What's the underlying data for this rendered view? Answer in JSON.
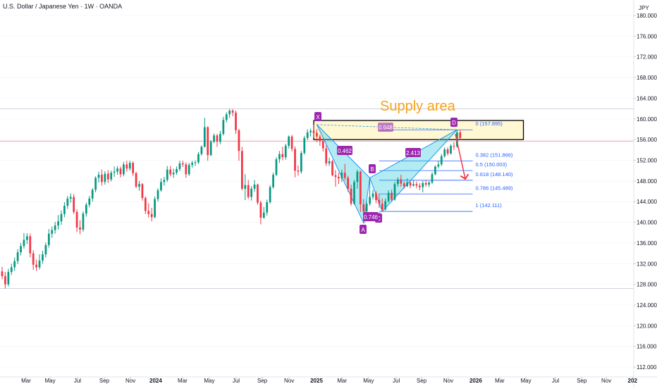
{
  "chart_data": {
    "type": "candlestick",
    "title": "U.S. Dollar / Japanese Yen · 1W · OANDA",
    "currency": "JPY",
    "up_color": "#089981",
    "down_color": "#f23645",
    "grid": true,
    "xlim": [
      -0.68,
      202.7
    ],
    "ylim": [
      110.1,
      183.0
    ],
    "xticks": [
      {
        "value": 7.7,
        "label": "Mar"
      },
      {
        "value": 15.4,
        "label": "May"
      },
      {
        "value": 24.2,
        "label": "Jul"
      },
      {
        "value": 32.8,
        "label": "Sep"
      },
      {
        "value": 41.2,
        "label": "Nov"
      },
      {
        "value": 49.3,
        "label": "2024"
      },
      {
        "value": 57.9,
        "label": "Mar"
      },
      {
        "value": 66.5,
        "label": "May"
      },
      {
        "value": 75.1,
        "label": "Jul"
      },
      {
        "value": 83.5,
        "label": "Sep"
      },
      {
        "value": 92.1,
        "label": "Nov"
      },
      {
        "value": 100.9,
        "label": "2025"
      },
      {
        "value": 109.1,
        "label": "Mar"
      },
      {
        "value": 117.6,
        "label": "May"
      },
      {
        "value": 126.5,
        "label": "Jul"
      },
      {
        "value": 134.6,
        "label": "Sep"
      },
      {
        "value": 143.2,
        "label": "Nov"
      },
      {
        "value": 152.0,
        "label": "2026"
      },
      {
        "value": 159.7,
        "label": "Mar"
      },
      {
        "value": 168.1,
        "label": "May"
      },
      {
        "value": 177.6,
        "label": "Jul"
      },
      {
        "value": 186.0,
        "label": "Sep"
      },
      {
        "value": 193.9,
        "label": "Nov"
      },
      {
        "value": 202.3,
        "label": "202"
      }
    ],
    "yticks": [
      {
        "value": 112,
        "label": "112.000"
      },
      {
        "value": 116,
        "label": "116.000"
      },
      {
        "value": 120,
        "label": "120.000"
      },
      {
        "value": 124,
        "label": "124.000"
      },
      {
        "value": 128,
        "label": "128.000"
      },
      {
        "value": 132,
        "label": "132.000"
      },
      {
        "value": 136,
        "label": "136.000"
      },
      {
        "value": 140,
        "label": "140.000"
      },
      {
        "value": 144,
        "label": "144.000"
      },
      {
        "value": 148,
        "label": "148.000"
      },
      {
        "value": 152,
        "label": "152.000"
      },
      {
        "value": 156,
        "label": "156.000"
      },
      {
        "value": 160,
        "label": "160.000"
      },
      {
        "value": 164,
        "label": "164.000"
      },
      {
        "value": 168,
        "label": "168.000"
      },
      {
        "value": 172,
        "label": "172.000"
      },
      {
        "value": 176,
        "label": "176.000"
      },
      {
        "value": 180,
        "label": "180.000"
      }
    ],
    "ohlc": [
      [
        130.5,
        131.4,
        129.0,
        129.6
      ],
      [
        129.6,
        130.4,
        127.2,
        128.0
      ],
      [
        128.0,
        131.0,
        127.6,
        130.4
      ],
      [
        130.4,
        132.0,
        129.8,
        131.3
      ],
      [
        131.3,
        133.2,
        130.6,
        132.5
      ],
      [
        132.5,
        134.8,
        131.9,
        134.2
      ],
      [
        134.2,
        136.0,
        133.6,
        135.4
      ],
      [
        135.4,
        137.9,
        134.9,
        136.6
      ],
      [
        136.6,
        137.9,
        135.8,
        137.3
      ],
      [
        137.3,
        137.8,
        133.2,
        134.0
      ],
      [
        134.0,
        134.6,
        130.8,
        131.8
      ],
      [
        131.8,
        132.8,
        130.6,
        131.3
      ],
      [
        131.3,
        133.8,
        130.9,
        132.6
      ],
      [
        132.6,
        134.5,
        132.0,
        133.8
      ],
      [
        133.8,
        136.1,
        133.2,
        135.6
      ],
      [
        135.6,
        138.7,
        135.1,
        137.8
      ],
      [
        137.8,
        139.2,
        137.0,
        138.5
      ],
      [
        138.5,
        140.1,
        137.8,
        139.4
      ],
      [
        139.4,
        141.4,
        138.6,
        140.2
      ],
      [
        140.2,
        142.3,
        139.5,
        141.6
      ],
      [
        141.6,
        143.9,
        141.0,
        143.2
      ],
      [
        143.2,
        145.1,
        142.6,
        144.6
      ],
      [
        144.6,
        145.6,
        143.8,
        144.9
      ],
      [
        144.9,
        145.5,
        141.6,
        142.0
      ],
      [
        142.0,
        142.5,
        138.1,
        139.0
      ],
      [
        139.0,
        140.4,
        137.7,
        138.6
      ],
      [
        138.6,
        142.1,
        138.2,
        141.7
      ],
      [
        141.7,
        143.8,
        141.1,
        143.4
      ],
      [
        143.4,
        145.1,
        142.9,
        144.6
      ],
      [
        144.6,
        146.6,
        144.0,
        146.3
      ],
      [
        146.3,
        148.9,
        145.8,
        148.6
      ],
      [
        148.6,
        149.8,
        147.7,
        149.2
      ],
      [
        149.2,
        150.2,
        147.1,
        147.8
      ],
      [
        147.8,
        149.9,
        147.3,
        149.4
      ],
      [
        149.4,
        150.1,
        147.6,
        148.3
      ],
      [
        148.3,
        150.0,
        147.9,
        149.6
      ],
      [
        149.6,
        150.8,
        148.8,
        149.8
      ],
      [
        149.8,
        150.9,
        149.2,
        150.4
      ],
      [
        150.4,
        150.8,
        148.7,
        149.3
      ],
      [
        149.3,
        151.7,
        148.9,
        151.2
      ],
      [
        151.2,
        151.9,
        149.8,
        150.4
      ],
      [
        150.4,
        151.9,
        150.0,
        151.5
      ],
      [
        151.5,
        151.8,
        149.0,
        149.5
      ],
      [
        149.5,
        149.8,
        146.6,
        146.9
      ],
      [
        146.9,
        148.0,
        146.1,
        147.4
      ],
      [
        147.4,
        147.6,
        144.2,
        144.7
      ],
      [
        144.7,
        145.0,
        141.6,
        142.2
      ],
      [
        142.2,
        143.7,
        140.9,
        141.6
      ],
      [
        141.6,
        142.8,
        140.2,
        141.0
      ],
      [
        141.0,
        145.0,
        140.8,
        144.5
      ],
      [
        144.5,
        146.6,
        144.0,
        146.2
      ],
      [
        146.2,
        148.5,
        145.9,
        147.8
      ],
      [
        147.8,
        148.8,
        147.1,
        148.2
      ],
      [
        148.2,
        150.9,
        147.8,
        150.2
      ],
      [
        150.2,
        150.9,
        148.9,
        149.3
      ],
      [
        149.3,
        150.4,
        148.6,
        149.6
      ],
      [
        149.6,
        150.8,
        149.2,
        150.3
      ],
      [
        150.3,
        151.9,
        149.9,
        151.4
      ],
      [
        151.4,
        151.9,
        150.7,
        151.2
      ],
      [
        151.2,
        151.6,
        148.6,
        149.3
      ],
      [
        149.3,
        151.5,
        149.0,
        151.1
      ],
      [
        151.1,
        151.9,
        150.6,
        151.5
      ],
      [
        151.5,
        152.0,
        150.9,
        151.6
      ],
      [
        151.6,
        153.6,
        151.3,
        153.2
      ],
      [
        153.2,
        154.9,
        152.9,
        154.6
      ],
      [
        154.6,
        160.2,
        154.5,
        158.4
      ],
      [
        158.4,
        158.6,
        151.9,
        153.0
      ],
      [
        153.0,
        155.9,
        152.8,
        155.6
      ],
      [
        155.6,
        157.2,
        155.3,
        156.8
      ],
      [
        156.8,
        157.1,
        154.6,
        155.6
      ],
      [
        155.6,
        157.7,
        155.1,
        157.1
      ],
      [
        157.1,
        160.4,
        156.8,
        159.8
      ],
      [
        159.8,
        161.3,
        159.3,
        160.9
      ],
      [
        160.9,
        161.9,
        160.2,
        161.6
      ],
      [
        161.6,
        161.9,
        160.5,
        161.2
      ],
      [
        161.2,
        161.6,
        157.1,
        157.8
      ],
      [
        157.8,
        158.1,
        151.9,
        153.8
      ],
      [
        153.8,
        154.6,
        146.2,
        146.5
      ],
      [
        146.5,
        149.3,
        144.3,
        147.2
      ],
      [
        147.2,
        148.2,
        144.5,
        144.9
      ],
      [
        144.9,
        147.0,
        144.2,
        146.5
      ],
      [
        146.5,
        148.2,
        145.9,
        147.3
      ],
      [
        147.3,
        147.5,
        143.4,
        143.8
      ],
      [
        143.8,
        144.2,
        139.6,
        140.9
      ],
      [
        140.9,
        143.0,
        140.7,
        141.9
      ],
      [
        141.9,
        144.4,
        141.3,
        143.9
      ],
      [
        143.9,
        147.2,
        143.6,
        146.8
      ],
      [
        146.8,
        149.6,
        146.5,
        149.2
      ],
      [
        149.2,
        152.6,
        148.9,
        152.2
      ],
      [
        152.2,
        153.8,
        151.5,
        153.2
      ],
      [
        153.2,
        154.6,
        152.0,
        152.6
      ],
      [
        152.6,
        155.2,
        152.1,
        154.8
      ],
      [
        154.8,
        156.8,
        154.3,
        156.6
      ],
      [
        156.6,
        156.9,
        153.7,
        154.2
      ],
      [
        154.2,
        154.7,
        148.7,
        150.0
      ],
      [
        150.0,
        151.0,
        149.0,
        149.8
      ],
      [
        149.8,
        153.8,
        149.4,
        153.4
      ],
      [
        153.4,
        156.7,
        153.1,
        156.3
      ],
      [
        156.3,
        158.0,
        155.9,
        157.4
      ],
      [
        157.4,
        158.1,
        156.6,
        157.7
      ],
      [
        157.7,
        158.9,
        156.4,
        157.3
      ],
      [
        157.3,
        158.0,
        155.5,
        156.6
      ],
      [
        156.6,
        157.0,
        154.8,
        155.7
      ],
      [
        155.7,
        156.2,
        153.7,
        154.3
      ],
      [
        154.3,
        154.9,
        150.9,
        151.4
      ],
      [
        151.4,
        152.5,
        150.9,
        151.8
      ],
      [
        151.8,
        152.1,
        148.9,
        149.1
      ],
      [
        149.1,
        150.1,
        146.9,
        148.8
      ],
      [
        148.8,
        149.6,
        147.4,
        148.5
      ],
      [
        148.5,
        150.2,
        147.8,
        149.6
      ],
      [
        149.6,
        151.3,
        148.1,
        148.6
      ],
      [
        148.6,
        149.0,
        145.9,
        146.5
      ],
      [
        146.5,
        147.3,
        143.2,
        143.6
      ],
      [
        143.6,
        148.2,
        143.4,
        147.8
      ],
      [
        147.8,
        150.2,
        146.5,
        149.8
      ],
      [
        149.8,
        150.0,
        142.0,
        143.5
      ],
      [
        143.5,
        144.5,
        139.9,
        142.1
      ],
      [
        142.1,
        144.2,
        141.5,
        143.6
      ],
      [
        143.6,
        148.6,
        143.2,
        144.9
      ],
      [
        144.9,
        146.3,
        144.4,
        145.6
      ],
      [
        145.6,
        146.0,
        143.7,
        144.3
      ],
      [
        144.3,
        145.5,
        142.8,
        143.6
      ],
      [
        143.6,
        144.6,
        142.1,
        142.5
      ],
      [
        142.5,
        144.6,
        142.3,
        144.1
      ],
      [
        144.1,
        146.2,
        143.8,
        145.7
      ],
      [
        145.7,
        146.3,
        144.0,
        144.4
      ],
      [
        144.4,
        147.8,
        144.2,
        147.4
      ],
      [
        147.4,
        148.7,
        146.9,
        148.3
      ],
      [
        148.3,
        149.2,
        146.9,
        147.5
      ],
      [
        147.5,
        147.9,
        146.5,
        147.0
      ],
      [
        147.0,
        148.5,
        146.8,
        147.7
      ],
      [
        147.7,
        148.0,
        146.6,
        147.1
      ],
      [
        147.1,
        148.2,
        146.9,
        147.4
      ],
      [
        147.4,
        147.9,
        146.6,
        147.1
      ],
      [
        147.1,
        147.6,
        146.2,
        146.8
      ],
      [
        146.8,
        148.0,
        145.8,
        147.6
      ],
      [
        147.6,
        148.2,
        146.9,
        147.3
      ],
      [
        147.3,
        148.0,
        146.8,
        147.7
      ],
      [
        147.7,
        149.7,
        147.4,
        149.3
      ],
      [
        149.3,
        151.0,
        149.1,
        150.8
      ],
      [
        150.8,
        151.9,
        150.4,
        151.2
      ],
      [
        151.2,
        153.2,
        150.9,
        152.8
      ],
      [
        152.8,
        154.5,
        152.5,
        154.1
      ],
      [
        154.1,
        154.5,
        152.9,
        153.3
      ],
      [
        153.3,
        155.1,
        153.1,
        154.8
      ],
      [
        154.8,
        155.5,
        154.0,
        154.7
      ],
      [
        154.7,
        157.9,
        154.4,
        157.4
      ],
      [
        157.4,
        157.9,
        155.9,
        156.3
      ]
    ],
    "hlines": [
      161.95,
      127.2
    ],
    "price_line": 155.7,
    "supply_zone": {
      "label": "Supply area",
      "x0": 100,
      "x1": 167.3,
      "top": 159.7,
      "bottom": 156.0
    },
    "fib": {
      "x0": 121,
      "x1": 151,
      "levels": [
        {
          "value": 157.895,
          "label": "0 (157.895)"
        },
        {
          "value": 151.866,
          "label": "0.382 (151.866)"
        },
        {
          "value": 150.003,
          "label": "0.5 (150.003)"
        },
        {
          "value": 148.14,
          "label": "0.618 (148.140)"
        },
        {
          "value": 145.489,
          "label": "0.786 (145.489)"
        },
        {
          "value": 142.111,
          "label": "1 (142.111)"
        }
      ]
    },
    "pattern": {
      "points": [
        {
          "label": "X",
          "x": 101,
          "y": 158.9
        },
        {
          "label": "A",
          "x": 116,
          "y": 139.9
        },
        {
          "label": "B",
          "x": 118,
          "y": 148.6
        },
        {
          "label": "C",
          "x": 122,
          "y": 142.1
        },
        {
          "label": "D",
          "x": 146,
          "y": 157.9
        }
      ],
      "ratios": [
        "0.948",
        "0.462",
        "0.746",
        "2.413"
      ]
    }
  }
}
